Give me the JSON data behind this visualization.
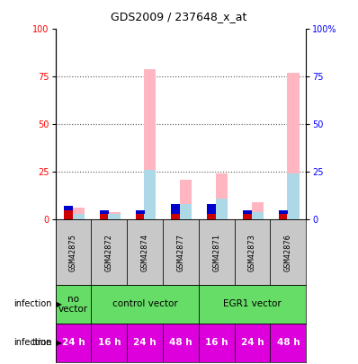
{
  "title": "GDS2009 / 237648_x_at",
  "samples": [
    "GSM42875",
    "GSM42872",
    "GSM42874",
    "GSM42877",
    "GSM42871",
    "GSM42873",
    "GSM42876"
  ],
  "count_values": [
    5,
    3,
    3,
    3,
    3,
    3,
    3
  ],
  "rank_values": [
    2,
    2,
    2,
    5,
    5,
    2,
    2
  ],
  "value_absent": [
    6,
    4,
    79,
    21,
    24,
    9,
    77
  ],
  "rank_absent": [
    3,
    3,
    26,
    8,
    11,
    4,
    24
  ],
  "time_labels": [
    "24 h",
    "16 h",
    "24 h",
    "48 h",
    "16 h",
    "24 h",
    "48 h"
  ],
  "ylim": [
    0,
    100
  ],
  "yticks": [
    0,
    25,
    50,
    75,
    100
  ],
  "color_count": "#cc0000",
  "color_rank": "#0000cc",
  "color_value_absent": "#FFB6C1",
  "color_rank_absent": "#ADD8E6",
  "sample_bg": "#c8c8c8",
  "infection_green": "#66dd66",
  "time_magenta": "#dd00dd",
  "bar_width": 0.55
}
